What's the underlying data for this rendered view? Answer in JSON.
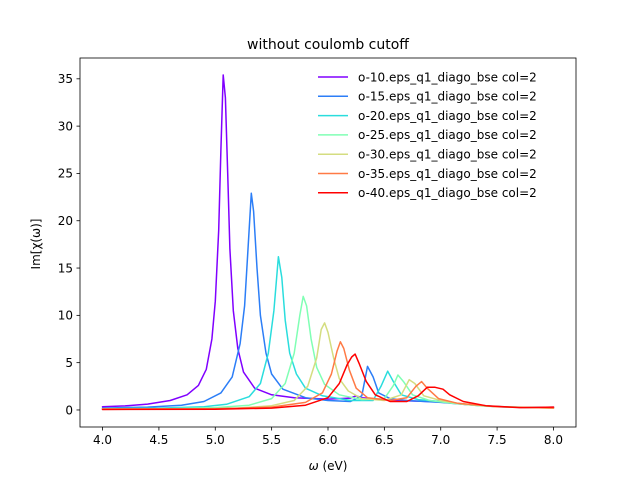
{
  "chart_data": {
    "type": "line",
    "title": "without coulomb cutoff",
    "xlabel_main": "ω",
    "xlabel_unit": " (eV)",
    "ylabel": "Im[χ(ω)]",
    "xlim": [
      3.8,
      8.2
    ],
    "ylim": [
      -1.8,
      37.2
    ],
    "x_ticks": [
      4.0,
      4.5,
      5.0,
      5.5,
      6.0,
      6.5,
      7.0,
      7.5,
      8.0
    ],
    "x_tick_labels": [
      "4.0",
      "4.5",
      "5.0",
      "5.5",
      "6.0",
      "6.5",
      "7.0",
      "7.5",
      "8.0"
    ],
    "y_ticks": [
      0,
      5,
      10,
      15,
      20,
      25,
      30,
      35
    ],
    "y_tick_labels": [
      "0",
      "5",
      "10",
      "15",
      "20",
      "25",
      "30",
      "35"
    ],
    "grid": false,
    "legend_position": "top-right",
    "series": [
      {
        "name": "o-10.eps_q1_diago_bse col=2",
        "color": "#8000ff",
        "points": [
          [
            4.0,
            0.33
          ],
          [
            4.2,
            0.43
          ],
          [
            4.4,
            0.62
          ],
          [
            4.6,
            1.0
          ],
          [
            4.75,
            1.6
          ],
          [
            4.85,
            2.6
          ],
          [
            4.92,
            4.3
          ],
          [
            4.97,
            7.5
          ],
          [
            5.0,
            11.5
          ],
          [
            5.03,
            19.0
          ],
          [
            5.05,
            27.5
          ],
          [
            5.07,
            35.4
          ],
          [
            5.09,
            33.0
          ],
          [
            5.11,
            25.0
          ],
          [
            5.13,
            17.0
          ],
          [
            5.16,
            10.5
          ],
          [
            5.2,
            6.5
          ],
          [
            5.25,
            4.0
          ],
          [
            5.35,
            2.3
          ],
          [
            5.5,
            1.6
          ],
          [
            5.7,
            1.3
          ],
          [
            6.0,
            1.15
          ],
          [
            6.2,
            1.25
          ],
          [
            6.25,
            1.5
          ],
          [
            6.3,
            1.3
          ],
          [
            6.6,
            1.0
          ],
          [
            6.9,
            0.9
          ],
          [
            7.0,
            0.95
          ],
          [
            7.2,
            0.6
          ],
          [
            7.5,
            0.35
          ],
          [
            7.8,
            0.25
          ],
          [
            8.0,
            0.3
          ]
        ]
      },
      {
        "name": "o-15.eps_q1_diago_bse col=2",
        "color": "#2c7ef7",
        "points": [
          [
            4.0,
            0.2
          ],
          [
            4.4,
            0.3
          ],
          [
            4.7,
            0.5
          ],
          [
            4.9,
            0.9
          ],
          [
            5.05,
            1.8
          ],
          [
            5.15,
            3.5
          ],
          [
            5.22,
            7.0
          ],
          [
            5.26,
            11.0
          ],
          [
            5.29,
            17.0
          ],
          [
            5.32,
            22.9
          ],
          [
            5.34,
            21.0
          ],
          [
            5.37,
            15.0
          ],
          [
            5.4,
            10.0
          ],
          [
            5.45,
            6.0
          ],
          [
            5.5,
            3.8
          ],
          [
            5.6,
            2.2
          ],
          [
            5.8,
            1.3
          ],
          [
            6.0,
            1.0
          ],
          [
            6.2,
            0.9
          ],
          [
            6.3,
            1.5
          ],
          [
            6.35,
            4.6
          ],
          [
            6.4,
            3.5
          ],
          [
            6.45,
            1.8
          ],
          [
            6.55,
            1.2
          ],
          [
            6.7,
            1.0
          ],
          [
            7.0,
            0.8
          ],
          [
            7.3,
            0.5
          ],
          [
            7.6,
            0.3
          ],
          [
            8.0,
            0.25
          ]
        ]
      },
      {
        "name": "o-20.eps_q1_diago_bse col=2",
        "color": "#2adddd",
        "points": [
          [
            4.0,
            0.15
          ],
          [
            4.5,
            0.2
          ],
          [
            4.9,
            0.35
          ],
          [
            5.1,
            0.6
          ],
          [
            5.3,
            1.4
          ],
          [
            5.4,
            2.8
          ],
          [
            5.47,
            6.0
          ],
          [
            5.52,
            10.5
          ],
          [
            5.56,
            16.2
          ],
          [
            5.59,
            14.0
          ],
          [
            5.62,
            9.5
          ],
          [
            5.66,
            6.0
          ],
          [
            5.72,
            3.8
          ],
          [
            5.8,
            2.3
          ],
          [
            5.95,
            1.5
          ],
          [
            6.2,
            1.0
          ],
          [
            6.4,
            1.0
          ],
          [
            6.47,
            2.5
          ],
          [
            6.53,
            4.1
          ],
          [
            6.58,
            3.0
          ],
          [
            6.65,
            1.6
          ],
          [
            6.8,
            1.1
          ],
          [
            7.0,
            0.9
          ],
          [
            7.3,
            0.5
          ],
          [
            7.6,
            0.3
          ],
          [
            8.0,
            0.25
          ]
        ]
      },
      {
        "name": "o-25.eps_q1_diago_bse col=2",
        "color": "#80ffb4",
        "points": [
          [
            4.0,
            0.1
          ],
          [
            4.6,
            0.15
          ],
          [
            5.0,
            0.25
          ],
          [
            5.3,
            0.5
          ],
          [
            5.5,
            1.2
          ],
          [
            5.62,
            2.8
          ],
          [
            5.7,
            6.0
          ],
          [
            5.75,
            10.0
          ],
          [
            5.78,
            12.0
          ],
          [
            5.81,
            11.0
          ],
          [
            5.85,
            7.5
          ],
          [
            5.9,
            4.5
          ],
          [
            5.97,
            2.7
          ],
          [
            6.1,
            1.6
          ],
          [
            6.3,
            1.1
          ],
          [
            6.5,
            1.2
          ],
          [
            6.58,
            2.6
          ],
          [
            6.62,
            3.7
          ],
          [
            6.67,
            3.0
          ],
          [
            6.75,
            1.6
          ],
          [
            6.9,
            1.0
          ],
          [
            7.1,
            0.7
          ],
          [
            7.4,
            0.4
          ],
          [
            7.7,
            0.3
          ],
          [
            8.0,
            0.2
          ]
        ]
      },
      {
        "name": "o-30.eps_q1_diago_bse col=2",
        "color": "#d4dd80",
        "points": [
          [
            4.0,
            0.1
          ],
          [
            4.8,
            0.12
          ],
          [
            5.2,
            0.2
          ],
          [
            5.5,
            0.45
          ],
          [
            5.7,
            1.0
          ],
          [
            5.82,
            2.5
          ],
          [
            5.9,
            5.5
          ],
          [
            5.94,
            8.5
          ],
          [
            5.97,
            9.2
          ],
          [
            6.0,
            8.2
          ],
          [
            6.05,
            5.5
          ],
          [
            6.1,
            3.3
          ],
          [
            6.18,
            2.0
          ],
          [
            6.3,
            1.2
          ],
          [
            6.5,
            1.0
          ],
          [
            6.65,
            1.6
          ],
          [
            6.72,
            3.2
          ],
          [
            6.77,
            2.8
          ],
          [
            6.85,
            1.5
          ],
          [
            7.0,
            1.0
          ],
          [
            7.2,
            0.6
          ],
          [
            7.5,
            0.35
          ],
          [
            8.0,
            0.2
          ]
        ]
      },
      {
        "name": "o-35.eps_q1_diago_bse col=2",
        "color": "#ff7a45",
        "points": [
          [
            4.0,
            0.1
          ],
          [
            5.0,
            0.12
          ],
          [
            5.5,
            0.3
          ],
          [
            5.8,
            0.8
          ],
          [
            5.95,
            1.8
          ],
          [
            6.03,
            3.8
          ],
          [
            6.08,
            6.2
          ],
          [
            6.11,
            7.2
          ],
          [
            6.14,
            6.5
          ],
          [
            6.19,
            4.2
          ],
          [
            6.25,
            2.3
          ],
          [
            6.35,
            1.3
          ],
          [
            6.55,
            1.0
          ],
          [
            6.7,
            1.3
          ],
          [
            6.78,
            2.5
          ],
          [
            6.83,
            3.0
          ],
          [
            6.88,
            2.3
          ],
          [
            6.98,
            1.2
          ],
          [
            7.15,
            0.7
          ],
          [
            7.5,
            0.35
          ],
          [
            8.0,
            0.2
          ]
        ]
      },
      {
        "name": "o-40.eps_q1_diago_bse col=2",
        "color": "#ff0000",
        "points": [
          [
            4.0,
            0.05
          ],
          [
            5.0,
            0.08
          ],
          [
            5.5,
            0.2
          ],
          [
            5.8,
            0.5
          ],
          [
            6.0,
            1.3
          ],
          [
            6.1,
            2.8
          ],
          [
            6.17,
            4.8
          ],
          [
            6.21,
            5.6
          ],
          [
            6.24,
            5.9
          ],
          [
            6.28,
            4.8
          ],
          [
            6.34,
            3.0
          ],
          [
            6.42,
            1.6
          ],
          [
            6.55,
            0.9
          ],
          [
            6.7,
            0.9
          ],
          [
            6.8,
            1.5
          ],
          [
            6.88,
            2.4
          ],
          [
            6.95,
            2.4
          ],
          [
            7.02,
            2.2
          ],
          [
            7.08,
            1.6
          ],
          [
            7.2,
            0.9
          ],
          [
            7.4,
            0.45
          ],
          [
            7.7,
            0.25
          ],
          [
            8.0,
            0.3
          ]
        ]
      }
    ]
  }
}
